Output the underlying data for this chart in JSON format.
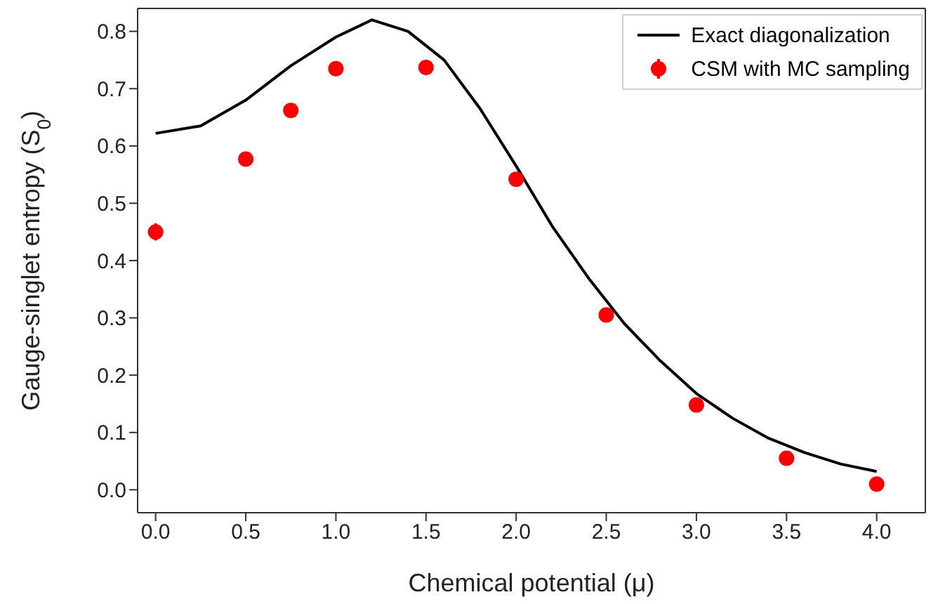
{
  "chart_data": {
    "type": "line",
    "xlabel": "Chemical potential (μ)",
    "ylabel": "Gauge-singlet entropy (S$_{0}$)",
    "xlim": [
      -0.1,
      4.27
    ],
    "ylim": [
      -0.04,
      0.84
    ],
    "xticks": [
      {
        "value": 0,
        "label": "0.0"
      },
      {
        "value": 0.5,
        "label": "0.5"
      },
      {
        "value": 1,
        "label": "1.0"
      },
      {
        "value": 1.5,
        "label": "1.5"
      },
      {
        "value": 2,
        "label": "2.0"
      },
      {
        "value": 2.5,
        "label": "2.5"
      },
      {
        "value": 3,
        "label": "3.0"
      },
      {
        "value": 3.5,
        "label": "3.5"
      },
      {
        "value": 4,
        "label": "4.0"
      }
    ],
    "yticks": [
      {
        "value": 0,
        "label": "0.0"
      },
      0.1,
      0.2,
      0.3,
      0.4,
      0.5,
      0.6,
      0.7,
      0.8
    ],
    "legend": "top right",
    "series": [
      {
        "name": "Exact diagonalization",
        "color": "#000000",
        "marker": "none",
        "line_style": "solid",
        "x": [
          0,
          0.25,
          0.5,
          0.75,
          1.0,
          1.2,
          1.4,
          1.6,
          1.8,
          2.0,
          2.2,
          2.4,
          2.6,
          2.8,
          3.0,
          3.2,
          3.4,
          3.6,
          3.8,
          4.0
        ],
        "values": [
          0.622,
          0.635,
          0.68,
          0.74,
          0.79,
          0.82,
          0.8,
          0.75,
          0.665,
          0.565,
          0.46,
          0.37,
          0.29,
          0.225,
          0.168,
          0.125,
          0.09,
          0.065,
          0.045,
          0.032
        ]
      },
      {
        "name": "CSM with MC sampling",
        "type": "scatter",
        "color": "#ff0000",
        "marker": "circle",
        "x": [
          0,
          0.5,
          0.75,
          1.0,
          1.5,
          2.0,
          2.5,
          3.0,
          3.5,
          4.0
        ],
        "values": [
          0.45,
          0.577,
          0.662,
          0.735,
          0.737,
          0.542,
          0.305,
          0.148,
          0.055,
          0.01
        ],
        "errors": [
          0.015,
          0.012,
          0.01,
          0.008,
          0.006,
          0.005,
          0.005,
          0.005,
          0.005,
          0.005
        ]
      }
    ]
  }
}
